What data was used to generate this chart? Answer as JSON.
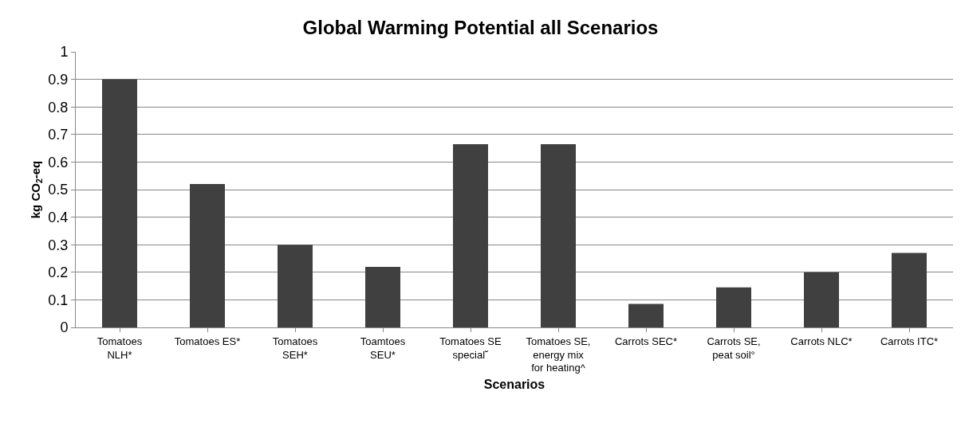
{
  "chart_data": {
    "type": "bar",
    "title": "Global Warming Potential all Scenarios",
    "xlabel": "Scenarios",
    "ylabel": "kg CO$_{2}$-eq",
    "categories": [
      "Tomatoes NLH*",
      "Tomatoes ES*",
      "Tomatoes SEH*",
      "Toamtoes SEU*",
      "Tomatoes SE special˘",
      "Tomatoes SE, energy mix for heating^",
      "Carrots SEC*",
      "Carrots SE, peat soil°",
      "Carrots NLC*",
      "Carrots ITC*"
    ],
    "values": [
      0.9,
      0.52,
      0.3,
      0.22,
      0.665,
      0.665,
      0.085,
      0.145,
      0.2,
      0.27
    ],
    "color": "#404040",
    "ylim": [
      0,
      1
    ],
    "yticks": [
      0,
      0.1,
      0.2,
      0.3,
      0.4,
      0.5,
      0.6,
      0.7,
      0.8,
      0.9,
      1
    ],
    "grid": "y",
    "legend": false
  }
}
